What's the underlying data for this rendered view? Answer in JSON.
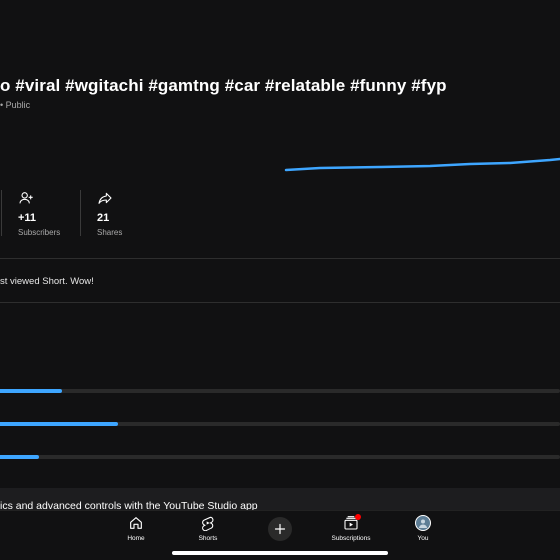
{
  "video": {
    "title": "o #viral #wgitachi #gamtng #car #relatable #funny #fyp",
    "visibility_separator": "•",
    "visibility": "Public"
  },
  "stats": [
    {
      "icon": "person-add-icon",
      "value": "+11",
      "label": "Subscribers"
    },
    {
      "icon": "share-icon",
      "value": "21",
      "label": "Shares"
    }
  ],
  "insight": {
    "message": "st viewed Short. Wow!"
  },
  "progress_bars": [
    0.11,
    0.21,
    0.07
  ],
  "promo": {
    "text": "ics and advanced controls with the YouTube Studio app"
  },
  "nav": {
    "home": "Home",
    "shorts": "Shorts",
    "create_icon": "plus-icon",
    "subscriptions": "Subscriptions",
    "you": "You"
  },
  "colors": {
    "accent": "#3ea6ff",
    "background": "#111112",
    "notification": "#ff0000"
  }
}
